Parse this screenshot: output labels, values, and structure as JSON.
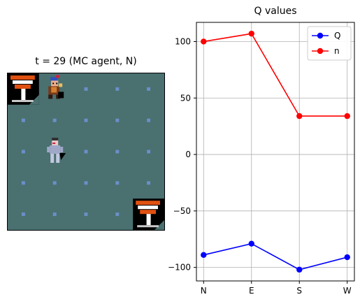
{
  "grid_panel": {
    "title": "t = 29 (MC agent, N)",
    "background": "#4a7070",
    "dot_color": "#6a8fc8",
    "cols": 5,
    "rows": 5,
    "sprites": [
      {
        "name": "goal-tile-icon",
        "col": 0,
        "row": 0
      },
      {
        "name": "enemy-sprite-icon",
        "col": 1,
        "row": 0
      },
      {
        "name": "agent-sprite-icon",
        "col": 1,
        "row": 2
      },
      {
        "name": "goal-tile-icon",
        "col": 4,
        "row": 4
      }
    ]
  },
  "chart_data": {
    "type": "line",
    "title": "Q values",
    "xlabel": "",
    "ylabel": "",
    "categories": [
      "N",
      "E",
      "S",
      "W"
    ],
    "ylim": [
      -112,
      117
    ],
    "yticks": [
      100,
      50,
      0,
      -50,
      -100
    ],
    "ytick_labels": [
      "100",
      "50",
      "0",
      "−50",
      "−100"
    ],
    "grid": true,
    "legend_position": "top-right",
    "series": [
      {
        "name": "Q",
        "color": "#0000ff",
        "values": [
          -89,
          -79,
          -102,
          -91
        ]
      },
      {
        "name": "n",
        "color": "#ff0000",
        "values": [
          100,
          107,
          34,
          34
        ]
      }
    ]
  }
}
